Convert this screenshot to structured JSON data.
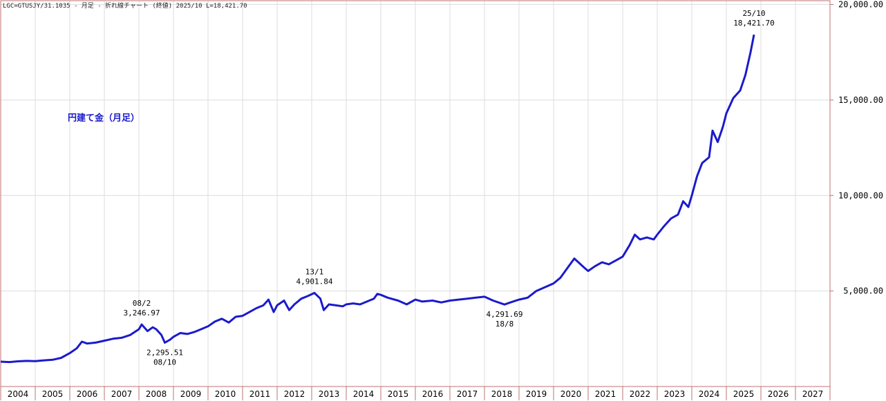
{
  "header": {
    "text": "LGC=GTUSJY/31.1035 - 月足 - 折れ線チャート (終値) 2025/10 L=18,421.70"
  },
  "chart_data": {
    "type": "line",
    "series_title": "円建て金（月足）",
    "line_color": "#1a1acd",
    "xlim": [
      2004.0,
      2028.0
    ],
    "ylim": [
      0,
      20200
    ],
    "yticks": [
      5000,
      10000,
      15000,
      20000
    ],
    "ytick_labels": [
      "5,000.00",
      "10,000.00",
      "15,000.00",
      "20,000.00"
    ],
    "xtick_labels": [
      "2004",
      "2005",
      "2006",
      "2007",
      "2008",
      "2009",
      "2010",
      "2011",
      "2012",
      "2013",
      "2014",
      "2015",
      "2016",
      "2017",
      "2018",
      "2019",
      "2020",
      "2021",
      "2022",
      "2023",
      "2024",
      "2025",
      "2026",
      "2027"
    ],
    "grid": true,
    "series": [
      {
        "points": [
          [
            2004.0,
            1300
          ],
          [
            2004.25,
            1280
          ],
          [
            2004.5,
            1320
          ],
          [
            2004.75,
            1340
          ],
          [
            2005.0,
            1330
          ],
          [
            2005.25,
            1370
          ],
          [
            2005.5,
            1400
          ],
          [
            2005.75,
            1500
          ],
          [
            2006.0,
            1750
          ],
          [
            2006.2,
            2000
          ],
          [
            2006.35,
            2350
          ],
          [
            2006.5,
            2250
          ],
          [
            2006.75,
            2300
          ],
          [
            2007.0,
            2400
          ],
          [
            2007.25,
            2500
          ],
          [
            2007.5,
            2550
          ],
          [
            2007.75,
            2700
          ],
          [
            2008.0,
            3000
          ],
          [
            2008.08,
            3246.97
          ],
          [
            2008.25,
            2900
          ],
          [
            2008.4,
            3100
          ],
          [
            2008.5,
            3000
          ],
          [
            2008.65,
            2700
          ],
          [
            2008.75,
            2295.51
          ],
          [
            2008.9,
            2450
          ],
          [
            2009.0,
            2600
          ],
          [
            2009.2,
            2800
          ],
          [
            2009.4,
            2750
          ],
          [
            2009.6,
            2850
          ],
          [
            2009.8,
            3000
          ],
          [
            2010.0,
            3150
          ],
          [
            2010.2,
            3400
          ],
          [
            2010.4,
            3550
          ],
          [
            2010.6,
            3350
          ],
          [
            2010.8,
            3650
          ],
          [
            2011.0,
            3700
          ],
          [
            2011.2,
            3900
          ],
          [
            2011.4,
            4100
          ],
          [
            2011.6,
            4250
          ],
          [
            2011.75,
            4550
          ],
          [
            2011.9,
            3900
          ],
          [
            2012.0,
            4250
          ],
          [
            2012.2,
            4500
          ],
          [
            2012.35,
            4000
          ],
          [
            2012.5,
            4300
          ],
          [
            2012.7,
            4600
          ],
          [
            2012.9,
            4750
          ],
          [
            2013.08,
            4901.84
          ],
          [
            2013.25,
            4600
          ],
          [
            2013.35,
            4000
          ],
          [
            2013.5,
            4300
          ],
          [
            2013.7,
            4250
          ],
          [
            2013.9,
            4200
          ],
          [
            2014.0,
            4300
          ],
          [
            2014.2,
            4350
          ],
          [
            2014.4,
            4300
          ],
          [
            2014.6,
            4450
          ],
          [
            2014.8,
            4600
          ],
          [
            2014.9,
            4850
          ],
          [
            2015.0,
            4800
          ],
          [
            2015.2,
            4650
          ],
          [
            2015.5,
            4500
          ],
          [
            2015.75,
            4300
          ],
          [
            2016.0,
            4550
          ],
          [
            2016.2,
            4450
          ],
          [
            2016.5,
            4500
          ],
          [
            2016.75,
            4400
          ],
          [
            2017.0,
            4500
          ],
          [
            2017.25,
            4550
          ],
          [
            2017.5,
            4600
          ],
          [
            2017.75,
            4650
          ],
          [
            2018.0,
            4700
          ],
          [
            2018.25,
            4500
          ],
          [
            2018.58,
            4291.69
          ],
          [
            2018.75,
            4400
          ],
          [
            2019.0,
            4550
          ],
          [
            2019.25,
            4650
          ],
          [
            2019.5,
            5000
          ],
          [
            2019.75,
            5200
          ],
          [
            2020.0,
            5400
          ],
          [
            2020.2,
            5700
          ],
          [
            2020.4,
            6200
          ],
          [
            2020.6,
            6700
          ],
          [
            2020.75,
            6450
          ],
          [
            2020.9,
            6200
          ],
          [
            2021.0,
            6050
          ],
          [
            2021.2,
            6300
          ],
          [
            2021.4,
            6500
          ],
          [
            2021.6,
            6400
          ],
          [
            2021.8,
            6600
          ],
          [
            2022.0,
            6800
          ],
          [
            2022.2,
            7400
          ],
          [
            2022.35,
            7950
          ],
          [
            2022.5,
            7700
          ],
          [
            2022.7,
            7800
          ],
          [
            2022.9,
            7700
          ],
          [
            2023.0,
            7950
          ],
          [
            2023.2,
            8400
          ],
          [
            2023.4,
            8800
          ],
          [
            2023.6,
            9000
          ],
          [
            2023.75,
            9700
          ],
          [
            2023.9,
            9400
          ],
          [
            2024.0,
            10000
          ],
          [
            2024.15,
            11000
          ],
          [
            2024.3,
            11700
          ],
          [
            2024.5,
            12000
          ],
          [
            2024.6,
            13400
          ],
          [
            2024.75,
            12800
          ],
          [
            2024.9,
            13600
          ],
          [
            2025.0,
            14300
          ],
          [
            2025.2,
            15100
          ],
          [
            2025.4,
            15500
          ],
          [
            2025.55,
            16300
          ],
          [
            2025.7,
            17500
          ],
          [
            2025.8,
            18421.7
          ]
        ]
      }
    ],
    "annotations": [
      {
        "x": 2008.08,
        "y": 3246.97,
        "label_top": "08/2",
        "label_bottom": "3,246.97",
        "position": "above"
      },
      {
        "x": 2008.75,
        "y": 2295.51,
        "label_top": "2,295.51",
        "label_bottom": "08/10",
        "position": "below"
      },
      {
        "x": 2013.08,
        "y": 4901.84,
        "label_top": "13/1",
        "label_bottom": "4,901.84",
        "position": "above"
      },
      {
        "x": 2018.58,
        "y": 4291.69,
        "label_top": "4,291.69",
        "label_bottom": "18/8",
        "position": "below"
      },
      {
        "x": 2025.8,
        "y": 18421.7,
        "label_top": "25/10",
        "label_bottom": "18,421.70",
        "position": "above"
      }
    ]
  }
}
